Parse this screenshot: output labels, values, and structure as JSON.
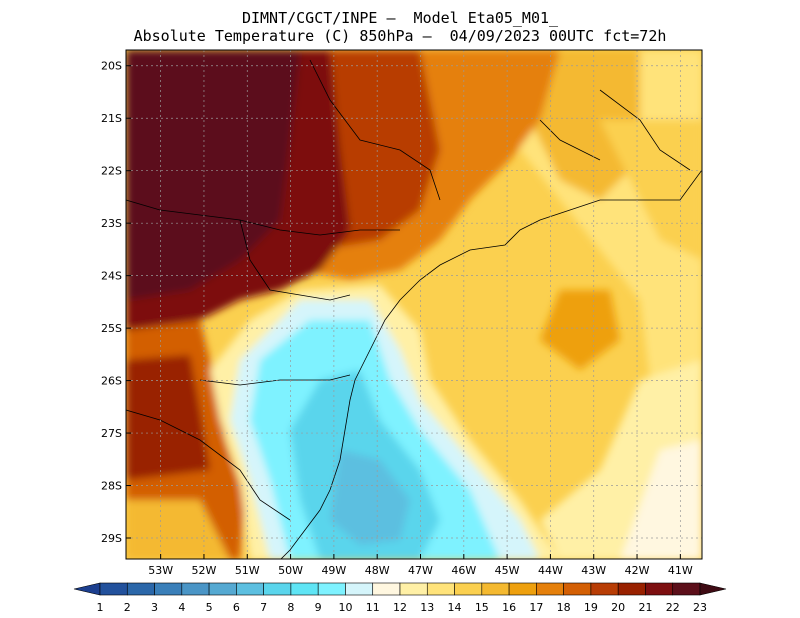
{
  "header": {
    "line1": "DIMNT/CGCT/INPE —  Model Eta05_M01_",
    "line2": "Absolute Temperature (C) 850hPa —  04/09/2023 00UTC fct=72h"
  },
  "map": {
    "lat_labels": [
      "20S",
      "21S",
      "22S",
      "23S",
      "24S",
      "25S",
      "26S",
      "27S",
      "28S",
      "29S"
    ],
    "lon_labels": [
      "53W",
      "52W",
      "51W",
      "50W",
      "49W",
      "48W",
      "47W",
      "46W",
      "45W",
      "44W",
      "43W",
      "42W",
      "41W"
    ],
    "extent": {
      "lon_min": -53.8,
      "lon_max": -40.5,
      "lat_min": -29.4,
      "lat_max": -19.7
    }
  },
  "colorbar": {
    "labels": [
      "1",
      "2",
      "3",
      "4",
      "5",
      "6",
      "7",
      "8",
      "9",
      "10",
      "11",
      "12",
      "13",
      "14",
      "15",
      "16",
      "17",
      "18",
      "19",
      "20",
      "21",
      "22",
      "23"
    ],
    "colors": [
      "#1c3f8f",
      "#22519c",
      "#2b67a9",
      "#3a7fb9",
      "#4a95c6",
      "#55a9d2",
      "#5cbfe0",
      "#5ad5ec",
      "#5fe5f5",
      "#7ef2ff",
      "#d5f5fb",
      "#fff7e0",
      "#fff0a6",
      "#ffe37a",
      "#fbd04f",
      "#f4b930",
      "#eea00e",
      "#e5800b",
      "#d35f04",
      "#b83d05",
      "#992100",
      "#7d0f10",
      "#5c0f1a",
      "#3f0b14"
    ]
  }
}
